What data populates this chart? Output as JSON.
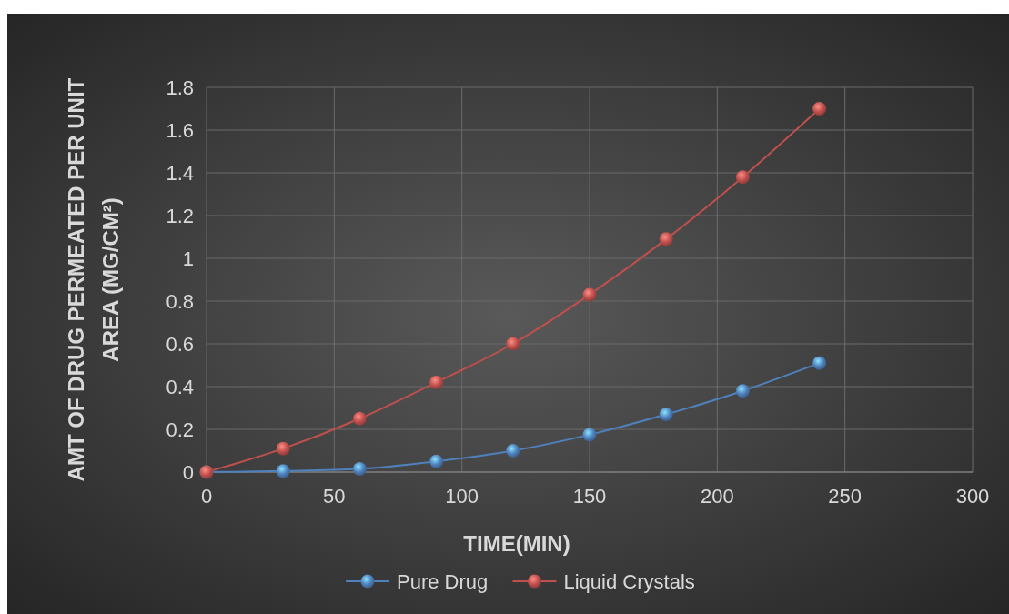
{
  "chart_data": {
    "type": "line",
    "xlabel": "TIME(MIN)",
    "ylabel": "AMT OF DRUG PERMEATED PER UNIT AREA (MG/CM²)",
    "xlim": [
      0,
      300
    ],
    "xticks": [
      0,
      50,
      100,
      150,
      200,
      250,
      300
    ],
    "ylim": [
      0,
      1.8
    ],
    "yticks": [
      0,
      {
        "value": 0.2,
        "label": "0.2"
      },
      {
        "value": 0.4,
        "label": "0.4"
      },
      {
        "value": 0.6,
        "label": "0.6"
      },
      {
        "value": 0.8,
        "label": "0.8"
      },
      1,
      {
        "value": 1.2,
        "label": "1.2"
      },
      {
        "value": 1.4,
        "label": "1.4"
      },
      {
        "value": 1.6,
        "label": "1.6"
      },
      {
        "value": 1.8,
        "label": "1.8"
      }
    ],
    "grid": true,
    "legend": "bottom",
    "marker": "circle",
    "line_style": "solid",
    "series": [
      {
        "name": "Pure Drug",
        "color": "#4f81bd",
        "x": [
          0,
          30,
          60,
          90,
          120,
          150,
          180,
          210,
          240
        ],
        "values": [
          0,
          0.005,
          0.015,
          0.05,
          0.1,
          0.175,
          0.27,
          0.38,
          0.51
        ]
      },
      {
        "name": "Liquid Crystals",
        "color": "#c0504d",
        "x": [
          0,
          30,
          60,
          90,
          120,
          150,
          180,
          210,
          240
        ],
        "values": [
          0,
          0.11,
          0.25,
          0.42,
          0.6,
          0.83,
          1.09,
          1.38,
          1.7
        ]
      }
    ]
  }
}
